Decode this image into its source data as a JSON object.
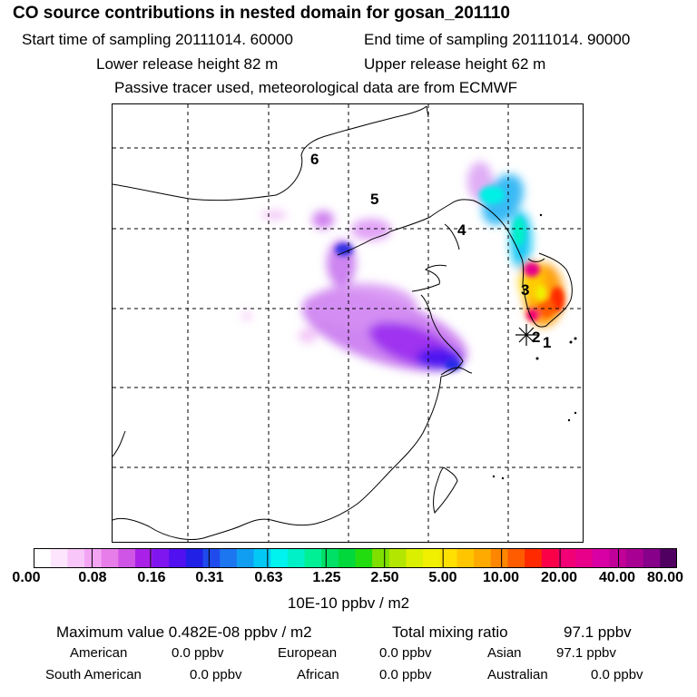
{
  "title": "CO  source contributions in nested domain for gosan_201110",
  "header": {
    "start_time": "Start time of sampling 20111014. 60000",
    "end_time": "End time of sampling 20111014. 90000",
    "lower_height": "Lower release height   82 m",
    "upper_height": "Upper release height   62 m",
    "tracer_note": "Passive tracer used, meteorological data are from ECMWF"
  },
  "map": {
    "site_labels": [
      "1",
      "2",
      "3",
      "4",
      "5",
      "6"
    ]
  },
  "colorbar": {
    "ticks": [
      "0.00",
      "0.08",
      "0.16",
      "0.31",
      "0.63",
      "1.25",
      "2.50",
      "5.00",
      "10.00",
      "20.00",
      "40.00",
      "80.00"
    ],
    "unit": "10E-10 ppbv / m2",
    "colors": [
      "#ffffff",
      "#fde6fd",
      "#f8c6f8",
      "#f3a5f3",
      "#e77de9",
      "#cf55e6",
      "#a921e8",
      "#7f16f0",
      "#5010f0",
      "#2020e6",
      "#1f4bec",
      "#1b76f0",
      "#109ef3",
      "#02c8f5",
      "#00f3ee",
      "#00f0c8",
      "#00f096",
      "#00e066",
      "#00d83c",
      "#23dc10",
      "#7fe000",
      "#b3e600",
      "#dbef00",
      "#f0f000",
      "#ffe000",
      "#ffc600",
      "#ffaa00",
      "#ff8600",
      "#ff5c00",
      "#ff2a00",
      "#fa0048",
      "#f20075",
      "#e8008b",
      "#d800a4",
      "#c00098",
      "#a80092",
      "#86008a",
      "#500060"
    ]
  },
  "stats": {
    "max_value": "Maximum value  0.482E-08 ppbv / m2",
    "total_label": "Total mixing ratio",
    "total_value": "97.1 ppbv"
  },
  "regions": [
    {
      "name": "American",
      "value": "0.0 ppbv"
    },
    {
      "name": "European",
      "value": "0.0 ppbv"
    },
    {
      "name": "Asian",
      "value": "97.1 ppbv"
    },
    {
      "name": "South American",
      "value": "0.0 ppbv"
    },
    {
      "name": "African",
      "value": "0.0 ppbv"
    },
    {
      "name": "Australian",
      "value": "0.0 ppbv"
    }
  ]
}
